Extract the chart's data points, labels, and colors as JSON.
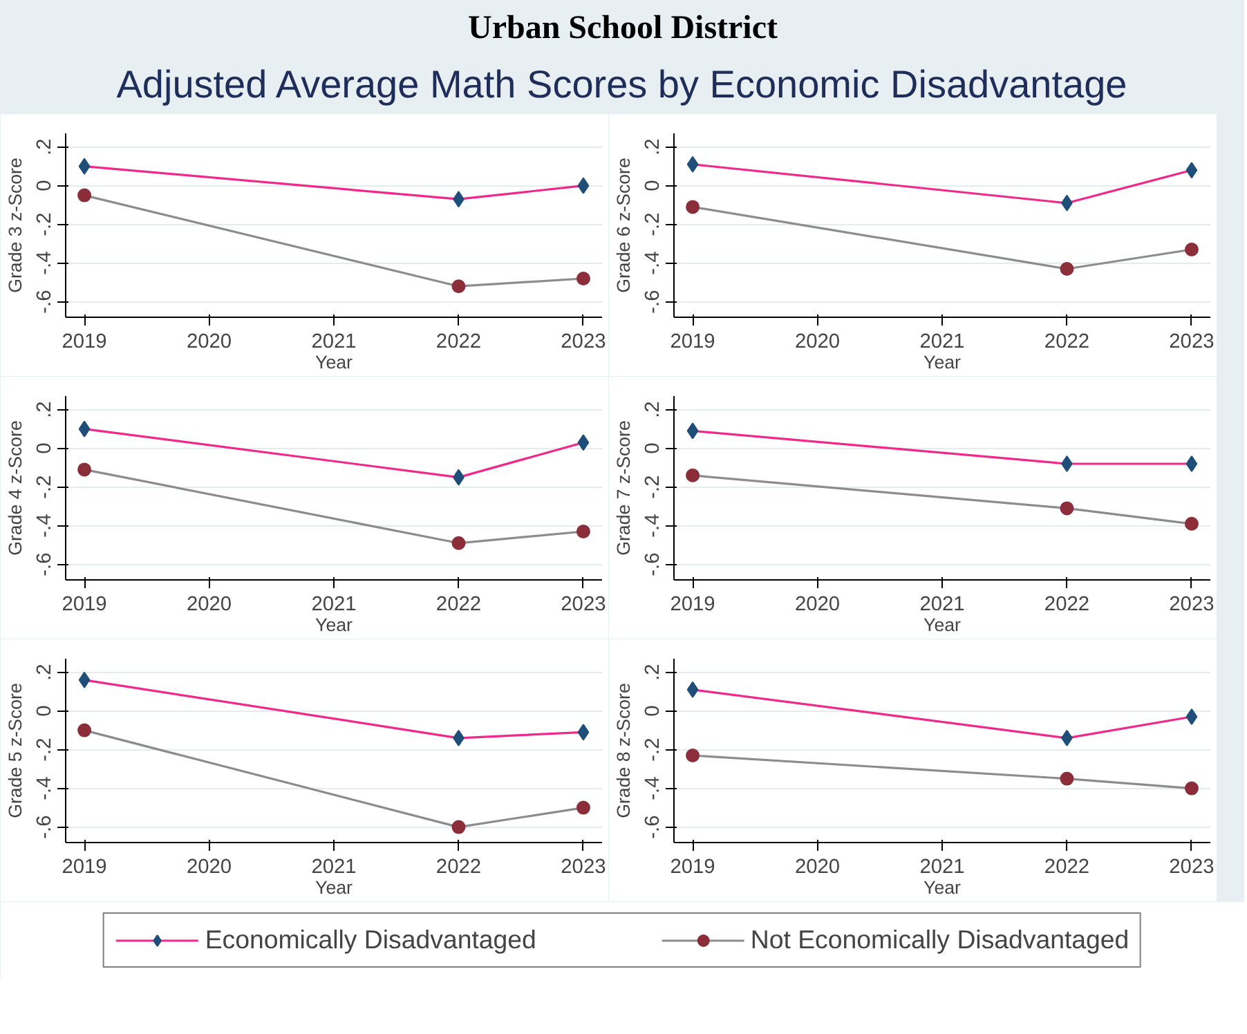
{
  "chart_data": [
    {
      "type": "line",
      "title": "Urban School District",
      "subtitle": "Adjusted Average Math Scores by Economic Disadvantage",
      "xlabel": "Year",
      "ylabel": "Grade 3 z-Score",
      "x": [
        2019,
        2022,
        2023
      ],
      "xlim": [
        2018.85,
        2023.15
      ],
      "xticks": [
        2019,
        2020,
        2021,
        2022,
        2023
      ],
      "ylim": [
        -0.68,
        0.27
      ],
      "yticks": [
        {
          "value": 0.2,
          "label": ".2"
        },
        0,
        {
          "value": -0.2,
          "label": "-.2"
        },
        {
          "value": -0.4,
          "label": "-.4"
        },
        {
          "value": -0.6,
          "label": "-.6"
        }
      ],
      "grid": "y",
      "series": [
        {
          "color": "#f0288c",
          "marker": "diamond",
          "values": [
            0.1,
            -0.07,
            0.0
          ]
        },
        {
          "color": "#8c8c8c",
          "marker": "circle",
          "values": [
            -0.05,
            -0.52,
            -0.48
          ]
        }
      ]
    },
    {
      "type": "line",
      "xlabel": "Year",
      "ylabel": "Grade 6 z-Score",
      "x": [
        2019,
        2022,
        2023
      ],
      "xlim": [
        2018.85,
        2023.15
      ],
      "xticks": [
        2019,
        2020,
        2021,
        2022,
        2023
      ],
      "ylim": [
        -0.68,
        0.27
      ],
      "yticks": [
        {
          "value": 0.2,
          "label": ".2"
        },
        0,
        {
          "value": -0.2,
          "label": "-.2"
        },
        {
          "value": -0.4,
          "label": "-.4"
        },
        {
          "value": -0.6,
          "label": "-.6"
        }
      ],
      "grid": "y",
      "series": [
        {
          "color": "#f0288c",
          "marker": "diamond",
          "values": [
            0.11,
            -0.09,
            0.08
          ]
        },
        {
          "color": "#8c8c8c",
          "marker": "circle",
          "values": [
            -0.11,
            -0.43,
            -0.33
          ]
        }
      ]
    },
    {
      "type": "line",
      "xlabel": "Year",
      "ylabel": "Grade 4 z-Score",
      "x": [
        2019,
        2022,
        2023
      ],
      "xlim": [
        2018.85,
        2023.15
      ],
      "xticks": [
        2019,
        2020,
        2021,
        2022,
        2023
      ],
      "ylim": [
        -0.68,
        0.27
      ],
      "yticks": [
        {
          "value": 0.2,
          "label": ".2"
        },
        0,
        {
          "value": -0.2,
          "label": "-.2"
        },
        {
          "value": -0.4,
          "label": "-.4"
        },
        {
          "value": -0.6,
          "label": "-.6"
        }
      ],
      "grid": "y",
      "series": [
        {
          "color": "#f0288c",
          "marker": "diamond",
          "values": [
            0.1,
            -0.15,
            0.03
          ]
        },
        {
          "color": "#8c8c8c",
          "marker": "circle",
          "values": [
            -0.11,
            -0.49,
            -0.43
          ]
        }
      ]
    },
    {
      "type": "line",
      "xlabel": "Year",
      "ylabel": "Grade 7 z-Score",
      "x": [
        2019,
        2022,
        2023
      ],
      "xlim": [
        2018.85,
        2023.15
      ],
      "xticks": [
        2019,
        2020,
        2021,
        2022,
        2023
      ],
      "ylim": [
        -0.68,
        0.27
      ],
      "yticks": [
        {
          "value": 0.2,
          "label": ".2"
        },
        0,
        {
          "value": -0.2,
          "label": "-.2"
        },
        {
          "value": -0.4,
          "label": "-.4"
        },
        {
          "value": -0.6,
          "label": "-.6"
        }
      ],
      "grid": "y",
      "series": [
        {
          "color": "#f0288c",
          "marker": "diamond",
          "values": [
            0.09,
            -0.08,
            -0.08
          ]
        },
        {
          "color": "#8c8c8c",
          "marker": "circle",
          "values": [
            -0.14,
            -0.31,
            -0.39
          ]
        }
      ]
    },
    {
      "type": "line",
      "xlabel": "Year",
      "ylabel": "Grade 5 z-Score",
      "x": [
        2019,
        2022,
        2023
      ],
      "xlim": [
        2018.85,
        2023.15
      ],
      "xticks": [
        2019,
        2020,
        2021,
        2022,
        2023
      ],
      "ylim": [
        -0.68,
        0.27
      ],
      "yticks": [
        {
          "value": 0.2,
          "label": ".2"
        },
        0,
        {
          "value": -0.2,
          "label": "-.2"
        },
        {
          "value": -0.4,
          "label": "-.4"
        },
        {
          "value": -0.6,
          "label": "-.6"
        }
      ],
      "grid": "y",
      "series": [
        {
          "color": "#f0288c",
          "marker": "diamond",
          "values": [
            0.16,
            -0.14,
            -0.11
          ]
        },
        {
          "color": "#8c8c8c",
          "marker": "circle",
          "values": [
            -0.1,
            -0.6,
            -0.5
          ]
        }
      ]
    },
    {
      "type": "line",
      "xlabel": "Year",
      "ylabel": "Grade 8 z-Score",
      "x": [
        2019,
        2022,
        2023
      ],
      "xlim": [
        2018.85,
        2023.15
      ],
      "xticks": [
        2019,
        2020,
        2021,
        2022,
        2023
      ],
      "ylim": [
        -0.68,
        0.27
      ],
      "yticks": [
        {
          "value": 0.2,
          "label": ".2"
        },
        0,
        {
          "value": -0.2,
          "label": "-.2"
        },
        {
          "value": -0.4,
          "label": "-.4"
        },
        {
          "value": -0.6,
          "label": "-.6"
        }
      ],
      "grid": "y",
      "legend": "bottom",
      "series": [
        {
          "name": "Economically Disadvantaged",
          "color": "#f0288c",
          "marker": "diamond",
          "values": [
            0.11,
            -0.14,
            -0.03
          ]
        },
        {
          "name": "Not Economically Disadvantaged",
          "color": "#8c8c8c",
          "marker": "circle",
          "values": [
            -0.23,
            -0.35,
            -0.4
          ]
        }
      ]
    }
  ]
}
